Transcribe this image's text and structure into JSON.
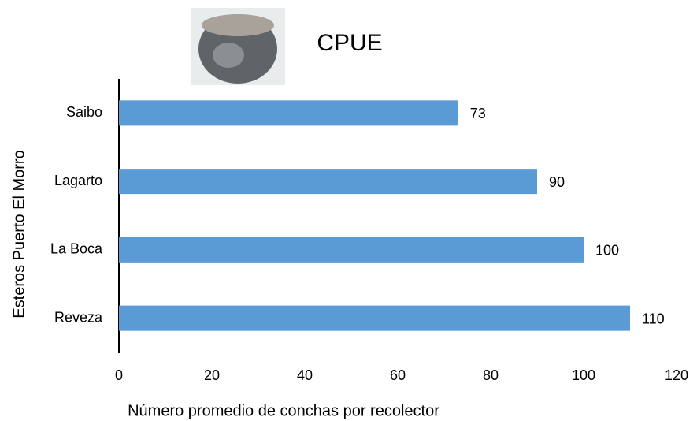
{
  "chart_data": {
    "type": "barh",
    "title": "CPUE",
    "categories": [
      "Saibo",
      "Lagarto",
      "La Boca",
      "Reveza"
    ],
    "values": [
      73,
      90,
      100,
      110
    ],
    "color": "#5b9bd5",
    "xlim": [
      0,
      120
    ],
    "xticks": [
      0,
      20,
      40,
      60,
      80,
      100,
      120
    ],
    "xlabel": "Número promedio de conchas por recolector",
    "ylabel": "Esteros Puerto El Morro",
    "grid": false
  }
}
